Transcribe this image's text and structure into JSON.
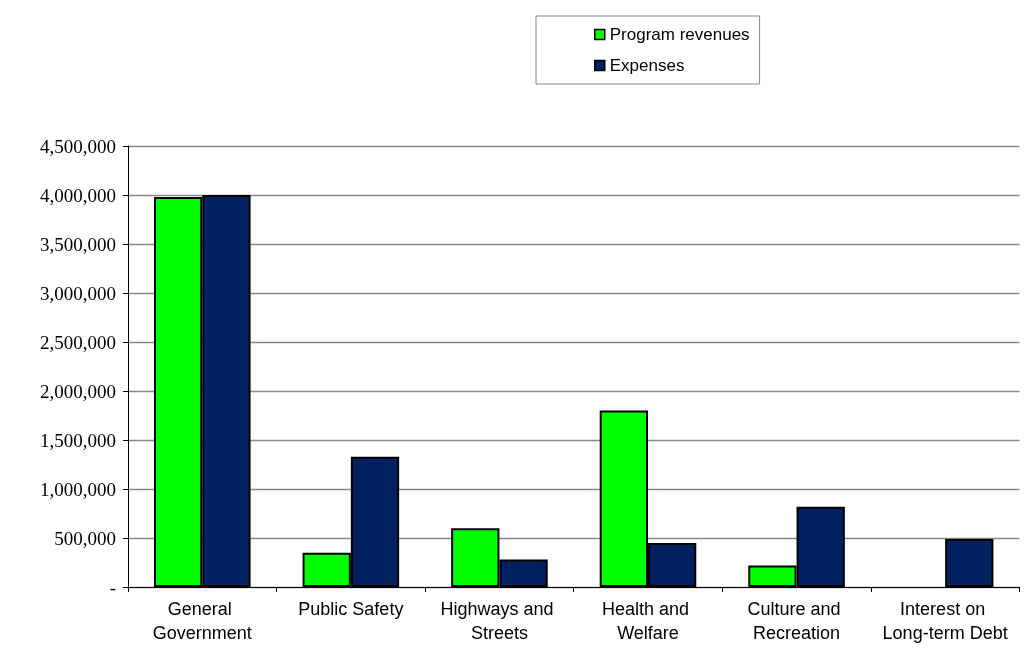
{
  "chart_data": {
    "type": "bar",
    "categories": [
      "General Government",
      "Public Safety",
      "Highways and Streets",
      "Health and Welfare",
      "Culture and Recreation",
      "Interest on Long-term Debt"
    ],
    "series": [
      {
        "name": "Program revenues",
        "color": "#00ff00",
        "values": [
          3980000,
          350000,
          600000,
          1800000,
          220000,
          null
        ]
      },
      {
        "name": "Expenses",
        "color": "#002060",
        "values": [
          4000000,
          1330000,
          280000,
          450000,
          820000,
          490000
        ]
      }
    ],
    "ylim": [
      0,
      4500000
    ],
    "yticks": [
      {
        "value": 0,
        "label": "-"
      },
      {
        "value": 500000,
        "label": "500,000"
      },
      {
        "value": 1000000,
        "label": "1,000,000"
      },
      {
        "value": 1500000,
        "label": "1,500,000"
      },
      {
        "value": 2000000,
        "label": "2,000,000"
      },
      {
        "value": 2500000,
        "label": "2,500,000"
      },
      {
        "value": 3000000,
        "label": "3,000,000"
      },
      {
        "value": 3500000,
        "label": "3,500,000"
      },
      {
        "value": 4000000,
        "label": "4,000,000"
      },
      {
        "value": 4500000,
        "label": "4,500,000"
      }
    ],
    "grid": "y",
    "legend": "top"
  }
}
